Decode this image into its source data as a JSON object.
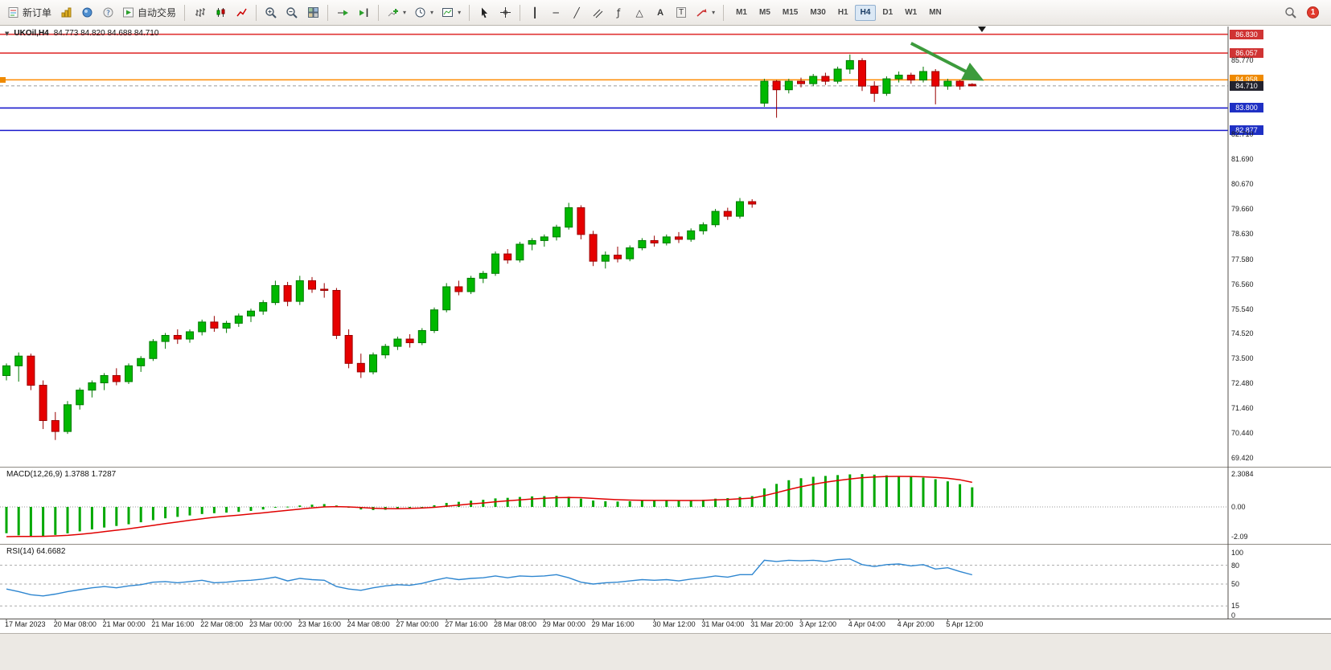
{
  "toolbar": {
    "new_order_label": "新订单",
    "autotrading_label": "自动交易",
    "timeframes": [
      "M1",
      "M5",
      "M15",
      "M30",
      "H1",
      "H4",
      "D1",
      "W1",
      "MN"
    ],
    "active_timeframe": "H4",
    "notification_badge": "1"
  },
  "chart_title": {
    "symbol": "UKOil,H4",
    "ohlc": "84.773 84.820 84.688 84.710"
  },
  "style": {
    "candle_up": "#00b800",
    "candle_up_border": "#007a00",
    "candle_down": "#e60000",
    "candle_down_border": "#990000",
    "macd_hist": "#00a800",
    "macd_signal": "#e00000",
    "rsi_line": "#2e86d0",
    "annotation_arrow": "#3c9b3c",
    "current_price_box": "#23232e",
    "axis_text": "#1a1a1a"
  },
  "chart_data": {
    "type": "candlestick",
    "symbol": "UKOil",
    "timeframe": "H4",
    "price_range": [
      69.05,
      87.15
    ],
    "price_ticks": [
      85.77,
      82.71,
      81.69,
      80.67,
      79.66,
      78.63,
      77.58,
      76.56,
      75.54,
      74.52,
      73.5,
      72.48,
      71.46,
      70.44,
      69.42
    ],
    "hlines": [
      {
        "value": 86.83,
        "color": "#e03434",
        "box": "#d03434"
      },
      {
        "value": 86.057,
        "color": "#e03434",
        "box": "#d03434"
      },
      {
        "value": 84.958,
        "color": "#ff8a00",
        "box": "#ef8a00"
      },
      {
        "value": 83.8,
        "color": "#1a1acc",
        "box": "#1f30c4"
      },
      {
        "value": 82.877,
        "color": "#1a1acc",
        "box": "#1f30c4"
      }
    ],
    "current_price": 84.71,
    "annotation_arrow": {
      "from_index": 74,
      "from_price": 86.46,
      "to_index": 79.5,
      "to_price": 85.04
    },
    "candles": [
      [
        72.8,
        73.3,
        72.6,
        73.2
      ],
      [
        73.2,
        73.75,
        72.55,
        73.6
      ],
      [
        73.6,
        73.7,
        72.2,
        72.4
      ],
      [
        72.4,
        72.6,
        70.6,
        70.95
      ],
      [
        70.95,
        71.3,
        70.15,
        70.5
      ],
      [
        70.5,
        71.75,
        70.4,
        71.6
      ],
      [
        71.6,
        72.3,
        71.4,
        72.2
      ],
      [
        72.2,
        72.6,
        71.9,
        72.5
      ],
      [
        72.5,
        72.9,
        72.2,
        72.8
      ],
      [
        72.8,
        73.1,
        72.4,
        72.55
      ],
      [
        72.55,
        73.3,
        72.45,
        73.2
      ],
      [
        73.2,
        73.6,
        72.95,
        73.5
      ],
      [
        73.5,
        74.3,
        73.4,
        74.2
      ],
      [
        74.2,
        74.55,
        73.9,
        74.45
      ],
      [
        74.45,
        74.7,
        74.1,
        74.3
      ],
      [
        74.3,
        74.7,
        74.15,
        74.6
      ],
      [
        74.6,
        75.1,
        74.45,
        75.0
      ],
      [
        75.0,
        75.25,
        74.6,
        74.75
      ],
      [
        74.75,
        75.05,
        74.55,
        74.95
      ],
      [
        74.95,
        75.35,
        74.8,
        75.25
      ],
      [
        75.25,
        75.55,
        75.0,
        75.45
      ],
      [
        75.45,
        75.9,
        75.3,
        75.8
      ],
      [
        75.8,
        76.7,
        75.7,
        76.5
      ],
      [
        76.5,
        76.65,
        75.65,
        75.85
      ],
      [
        75.85,
        76.9,
        75.7,
        76.7
      ],
      [
        76.7,
        76.85,
        76.2,
        76.35
      ],
      [
        76.35,
        76.6,
        76.0,
        76.3
      ],
      [
        76.3,
        76.4,
        74.3,
        74.45
      ],
      [
        74.45,
        74.7,
        73.1,
        73.3
      ],
      [
        73.3,
        73.7,
        72.7,
        72.95
      ],
      [
        72.95,
        73.75,
        72.85,
        73.65
      ],
      [
        73.65,
        74.1,
        73.5,
        74.0
      ],
      [
        74.0,
        74.4,
        73.85,
        74.3
      ],
      [
        74.3,
        74.5,
        73.95,
        74.15
      ],
      [
        74.15,
        74.75,
        74.05,
        74.65
      ],
      [
        74.65,
        75.6,
        74.55,
        75.5
      ],
      [
        75.5,
        76.6,
        75.4,
        76.45
      ],
      [
        76.45,
        76.7,
        76.1,
        76.25
      ],
      [
        76.25,
        76.9,
        76.15,
        76.8
      ],
      [
        76.8,
        77.1,
        76.6,
        77.0
      ],
      [
        77.0,
        77.9,
        76.9,
        77.8
      ],
      [
        77.8,
        78.0,
        77.4,
        77.55
      ],
      [
        77.55,
        78.3,
        77.45,
        78.2
      ],
      [
        78.2,
        78.45,
        77.95,
        78.35
      ],
      [
        78.35,
        78.6,
        78.1,
        78.5
      ],
      [
        78.5,
        79.0,
        78.35,
        78.9
      ],
      [
        78.9,
        79.9,
        78.8,
        79.7
      ],
      [
        79.7,
        79.8,
        78.4,
        78.6
      ],
      [
        78.6,
        78.75,
        77.3,
        77.5
      ],
      [
        77.5,
        77.9,
        77.2,
        77.75
      ],
      [
        77.75,
        78.1,
        77.45,
        77.6
      ],
      [
        77.6,
        78.15,
        77.5,
        78.05
      ],
      [
        78.05,
        78.45,
        77.95,
        78.35
      ],
      [
        78.35,
        78.55,
        78.1,
        78.25
      ],
      [
        78.25,
        78.6,
        78.15,
        78.5
      ],
      [
        78.5,
        78.7,
        78.25,
        78.4
      ],
      [
        78.4,
        78.85,
        78.3,
        78.75
      ],
      [
        78.75,
        79.1,
        78.6,
        79.0
      ],
      [
        79.0,
        79.65,
        78.9,
        79.55
      ],
      [
        79.55,
        79.7,
        79.2,
        79.35
      ],
      [
        79.35,
        80.1,
        79.25,
        79.95
      ],
      [
        79.95,
        80.05,
        79.7,
        79.85
      ],
      [
        84.0,
        85.0,
        83.85,
        84.9
      ],
      [
        84.9,
        84.95,
        83.4,
        84.55
      ],
      [
        84.55,
        85.0,
        84.4,
        84.9
      ],
      [
        84.9,
        85.05,
        84.65,
        84.8
      ],
      [
        84.8,
        85.2,
        84.7,
        85.1
      ],
      [
        85.1,
        85.25,
        84.75,
        84.9
      ],
      [
        84.9,
        85.5,
        84.8,
        85.4
      ],
      [
        85.4,
        86.0,
        85.2,
        85.75
      ],
      [
        85.75,
        85.85,
        84.5,
        84.7
      ],
      [
        84.7,
        84.9,
        84.05,
        84.4
      ],
      [
        84.4,
        85.1,
        84.3,
        85.0
      ],
      [
        85.0,
        85.3,
        84.85,
        85.15
      ],
      [
        85.15,
        85.25,
        84.8,
        84.95
      ],
      [
        84.95,
        85.5,
        84.85,
        85.3
      ],
      [
        85.3,
        85.4,
        83.95,
        84.7
      ],
      [
        84.7,
        85.0,
        84.55,
        84.9
      ],
      [
        84.9,
        84.95,
        84.55,
        84.7
      ],
      [
        84.773,
        84.82,
        84.688,
        84.71
      ]
    ],
    "time_labels": [
      {
        "i": 0,
        "t": "17 Mar 2023"
      },
      {
        "i": 4,
        "t": "20 Mar 08:00"
      },
      {
        "i": 8,
        "t": "21 Mar 00:00"
      },
      {
        "i": 12,
        "t": "21 Mar 16:00"
      },
      {
        "i": 16,
        "t": "22 Mar 08:00"
      },
      {
        "i": 20,
        "t": "23 Mar 00:00"
      },
      {
        "i": 24,
        "t": "23 Mar 16:00"
      },
      {
        "i": 28,
        "t": "24 Mar 08:00"
      },
      {
        "i": 32,
        "t": "27 Mar 00:00"
      },
      {
        "i": 36,
        "t": "27 Mar 16:00"
      },
      {
        "i": 40,
        "t": "28 Mar 08:00"
      },
      {
        "i": 44,
        "t": "29 Mar 00:00"
      },
      {
        "i": 48,
        "t": "29 Mar 16:00"
      },
      {
        "i": 53,
        "t": "30 Mar 12:00"
      },
      {
        "i": 57,
        "t": "31 Mar 04:00"
      },
      {
        "i": 61,
        "t": "31 Mar 20:00"
      },
      {
        "i": 65,
        "t": "3 Apr 12:00"
      },
      {
        "i": 69,
        "t": "4 Apr 04:00"
      },
      {
        "i": 73,
        "t": "4 Apr 20:00"
      },
      {
        "i": 77,
        "t": "5 Apr 12:00"
      }
    ],
    "macd": {
      "label": "MACD(12,26,9) 1.3788 1.7287",
      "main_value": 1.3788,
      "signal_value": 1.7287,
      "scale": [
        {
          "v": 2.3084,
          "t": "2.3084"
        },
        {
          "v": 0,
          "t": "0.00"
        },
        {
          "v": -2.09,
          "t": "-2.09"
        }
      ],
      "range": [
        -2.6,
        2.77
      ],
      "hist": [
        -1.85,
        -2.0,
        -2.09,
        -2.05,
        -1.97,
        -1.86,
        -1.72,
        -1.58,
        -1.45,
        -1.34,
        -1.22,
        -1.08,
        -0.93,
        -0.8,
        -0.7,
        -0.6,
        -0.5,
        -0.44,
        -0.4,
        -0.35,
        -0.28,
        -0.18,
        -0.05,
        0.02,
        0.1,
        0.16,
        0.2,
        0.1,
        -0.05,
        -0.18,
        -0.22,
        -0.2,
        -0.15,
        -0.08,
        0.0,
        0.12,
        0.28,
        0.36,
        0.44,
        0.5,
        0.6,
        0.64,
        0.7,
        0.74,
        0.76,
        0.78,
        0.72,
        0.58,
        0.45,
        0.4,
        0.38,
        0.4,
        0.43,
        0.44,
        0.45,
        0.43,
        0.45,
        0.5,
        0.58,
        0.62,
        0.7,
        0.76,
        1.3,
        1.62,
        1.88,
        2.02,
        2.12,
        2.18,
        2.24,
        2.29,
        2.31,
        2.27,
        2.22,
        2.17,
        2.12,
        2.06,
        1.95,
        1.8,
        1.6,
        1.38
      ],
      "signal": [
        -2.09,
        -2.08,
        -2.08,
        -2.07,
        -2.04,
        -2.0,
        -1.93,
        -1.84,
        -1.74,
        -1.64,
        -1.54,
        -1.42,
        -1.3,
        -1.17,
        -1.06,
        -0.94,
        -0.83,
        -0.73,
        -0.65,
        -0.58,
        -0.5,
        -0.42,
        -0.33,
        -0.24,
        -0.15,
        -0.07,
        0.0,
        0.02,
        0.0,
        -0.04,
        -0.09,
        -0.12,
        -0.13,
        -0.11,
        -0.08,
        -0.03,
        0.05,
        0.13,
        0.21,
        0.28,
        0.36,
        0.43,
        0.5,
        0.56,
        0.61,
        0.65,
        0.67,
        0.65,
        0.6,
        0.55,
        0.51,
        0.48,
        0.47,
        0.46,
        0.46,
        0.45,
        0.45,
        0.46,
        0.49,
        0.52,
        0.57,
        0.62,
        0.79,
        1.0,
        1.22,
        1.42,
        1.59,
        1.74,
        1.86,
        1.97,
        2.06,
        2.11,
        2.14,
        2.15,
        2.14,
        2.12,
        2.08,
        2.01,
        1.91,
        1.73
      ]
    },
    "rsi": {
      "label": "RSI(14) 64.6682",
      "value": 64.6682,
      "levels": [
        80,
        50,
        15
      ],
      "scale": [
        {
          "v": 100,
          "t": "100"
        },
        {
          "v": 80,
          "t": "80"
        },
        {
          "v": 50,
          "t": "50"
        },
        {
          "v": 15,
          "t": "15"
        },
        {
          "v": 0,
          "t": "0"
        }
      ],
      "values": [
        42,
        38,
        33,
        31,
        34,
        38,
        41,
        44,
        46,
        44,
        47,
        49,
        53,
        54,
        52,
        54,
        56,
        52,
        53,
        55,
        56,
        58,
        61,
        55,
        59,
        57,
        56,
        46,
        42,
        40,
        44,
        47,
        49,
        48,
        51,
        56,
        60,
        57,
        59,
        60,
        63,
        60,
        63,
        62,
        63,
        65,
        60,
        53,
        50,
        52,
        53,
        55,
        57,
        56,
        57,
        55,
        58,
        60,
        63,
        61,
        65,
        65,
        88,
        86,
        88,
        87,
        88,
        86,
        89,
        90,
        81,
        78,
        81,
        82,
        79,
        81,
        74,
        76,
        70,
        64.7
      ]
    }
  }
}
